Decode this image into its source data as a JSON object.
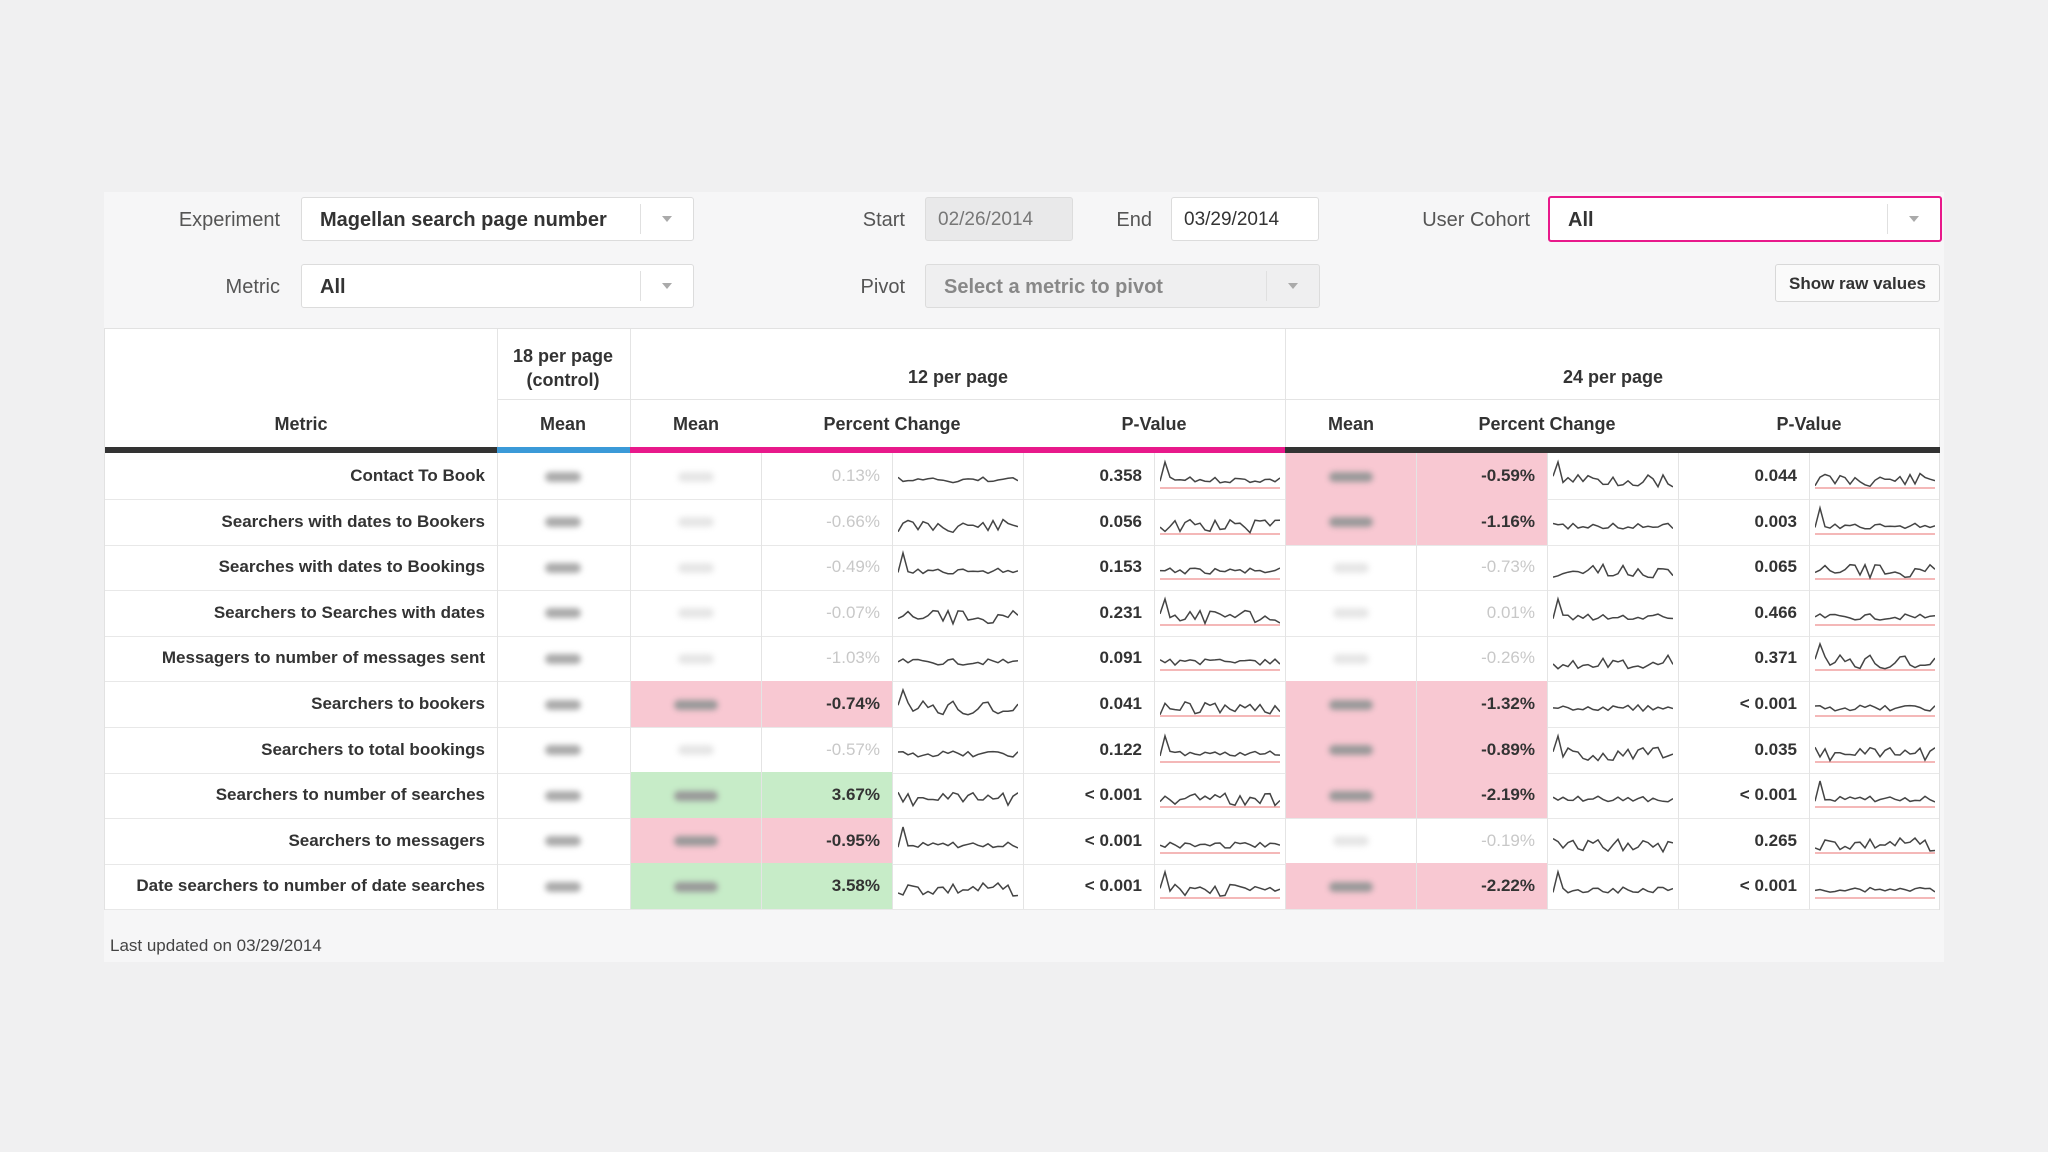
{
  "controls": {
    "experiment_label": "Experiment",
    "experiment_value": "Magellan search page number",
    "metric_label": "Metric",
    "metric_value": "All",
    "start_label": "Start",
    "start_value": "02/26/2014",
    "end_label": "End",
    "end_value": "03/29/2014",
    "pivot_label": "Pivot",
    "pivot_placeholder": "Select a metric to pivot",
    "cohort_label": "User Cohort",
    "cohort_value": "All",
    "show_raw_button": "Show raw values"
  },
  "table": {
    "groups": {
      "control": "18 per page\n(control)",
      "g12": "12 per page",
      "g24": "24 per page"
    },
    "columns": {
      "metric": "Metric",
      "mean": "Mean",
      "pct": "Percent Change",
      "pval": "P-Value"
    },
    "colors": {
      "control": "#3b9ad8",
      "g12": "#e8198b",
      "g24": "#e8198b",
      "positive": "#c7ecc8",
      "negative": "#f8c8d2"
    },
    "rows": [
      {
        "metric": "Contact To Book",
        "g12": {
          "pct": "0.13%",
          "pval": "0.358",
          "state": "none"
        },
        "g24": {
          "pct": "-0.59%",
          "pval": "0.044",
          "state": "neg"
        }
      },
      {
        "metric": "Searchers with dates to Bookers",
        "g12": {
          "pct": "-0.66%",
          "pval": "0.056",
          "state": "none"
        },
        "g24": {
          "pct": "-1.16%",
          "pval": "0.003",
          "state": "neg"
        }
      },
      {
        "metric": "Searches with dates to Bookings",
        "g12": {
          "pct": "-0.49%",
          "pval": "0.153",
          "state": "none"
        },
        "g24": {
          "pct": "-0.73%",
          "pval": "0.065",
          "state": "none"
        }
      },
      {
        "metric": "Searchers to Searches with dates",
        "g12": {
          "pct": "-0.07%",
          "pval": "0.231",
          "state": "none"
        },
        "g24": {
          "pct": "0.01%",
          "pval": "0.466",
          "state": "none"
        }
      },
      {
        "metric": "Messagers to number of messages sent",
        "g12": {
          "pct": "-1.03%",
          "pval": "0.091",
          "state": "none"
        },
        "g24": {
          "pct": "-0.26%",
          "pval": "0.371",
          "state": "none"
        }
      },
      {
        "metric": "Searchers to bookers",
        "g12": {
          "pct": "-0.74%",
          "pval": "0.041",
          "state": "neg"
        },
        "g24": {
          "pct": "-1.32%",
          "pval": "< 0.001",
          "state": "neg"
        }
      },
      {
        "metric": "Searchers to total bookings",
        "g12": {
          "pct": "-0.57%",
          "pval": "0.122",
          "state": "none"
        },
        "g24": {
          "pct": "-0.89%",
          "pval": "0.035",
          "state": "neg"
        }
      },
      {
        "metric": "Searchers to number of searches",
        "g12": {
          "pct": "3.67%",
          "pval": "< 0.001",
          "state": "pos"
        },
        "g24": {
          "pct": "-2.19%",
          "pval": "< 0.001",
          "state": "neg"
        }
      },
      {
        "metric": "Searchers to messagers",
        "g12": {
          "pct": "-0.95%",
          "pval": "< 0.001",
          "state": "neg"
        },
        "g24": {
          "pct": "-0.19%",
          "pval": "0.265",
          "state": "none"
        }
      },
      {
        "metric": "Date searchers to number of date searches",
        "g12": {
          "pct": "3.58%",
          "pval": "< 0.001",
          "state": "pos"
        },
        "g24": {
          "pct": "-2.22%",
          "pval": "< 0.001",
          "state": "neg"
        }
      }
    ]
  },
  "footer": {
    "last_updated": "Last updated on 03/29/2014"
  }
}
